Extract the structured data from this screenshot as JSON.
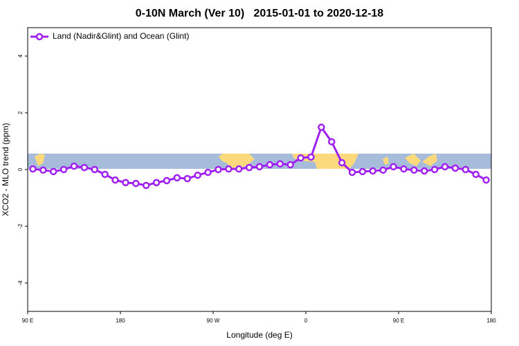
{
  "chart_data": {
    "type": "line",
    "title": "0-10N March (Ver 10)   2015-01-01 to 2020-12-18",
    "x_label": "Longitude (deg E)",
    "y_label": "XCO2 - MLO trend (ppm)",
    "x": [
      95,
      105,
      115,
      125,
      135,
      145,
      155,
      165,
      175,
      185,
      195,
      205,
      215,
      225,
      235,
      245,
      255,
      265,
      275,
      285,
      295,
      305,
      315,
      325,
      335,
      345,
      355,
      365,
      375,
      385,
      395,
      405,
      415,
      425,
      435,
      445,
      455,
      465,
      475,
      485,
      495,
      505,
      515,
      525,
      535
    ],
    "series": [
      {
        "name": "Land (Nadir&Glint) and Ocean (Glint)",
        "color": "#a020f0",
        "values": [
          0.02,
          -0.02,
          -0.07,
          0,
          0.12,
          0.07,
          0,
          -0.17,
          -0.37,
          -0.46,
          -0.49,
          -0.56,
          -0.46,
          -0.39,
          -0.29,
          -0.32,
          -0.2,
          -0.1,
          0,
          0.02,
          0.02,
          0.07,
          0.1,
          0.17,
          0.2,
          0.17,
          0.41,
          0.44,
          1.49,
          0.98,
          0.24,
          -0.1,
          -0.07,
          -0.05,
          -0.02,
          0.1,
          0.02,
          -0.02,
          -0.05,
          0,
          0.1,
          0.05,
          0,
          -0.17,
          -0.37
        ]
      }
    ],
    "xlim": [
      90,
      540
    ],
    "xticks": [
      {
        "value": 90,
        "label": "90 E"
      },
      {
        "value": 180,
        "label": "180"
      },
      {
        "value": 270,
        "label": "90 W"
      },
      {
        "value": 360,
        "label": "0"
      },
      {
        "value": 450,
        "label": "90 E"
      },
      {
        "value": 540,
        "label": "180"
      }
    ],
    "ylim": [
      -5,
      5
    ],
    "yticks": [
      -4,
      -2,
      0,
      2,
      4
    ],
    "legend": "top-left"
  }
}
